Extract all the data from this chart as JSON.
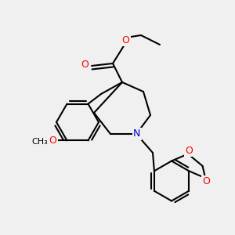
{
  "bg_color": "#f0f0f0",
  "bond_color": "#000000",
  "O_color": "#ff0000",
  "N_color": "#0000cc",
  "line_width": 1.5,
  "figsize": [
    3.0,
    3.0
  ],
  "dpi": 100,
  "xlim": [
    0,
    10
  ],
  "ylim": [
    0,
    10
  ]
}
